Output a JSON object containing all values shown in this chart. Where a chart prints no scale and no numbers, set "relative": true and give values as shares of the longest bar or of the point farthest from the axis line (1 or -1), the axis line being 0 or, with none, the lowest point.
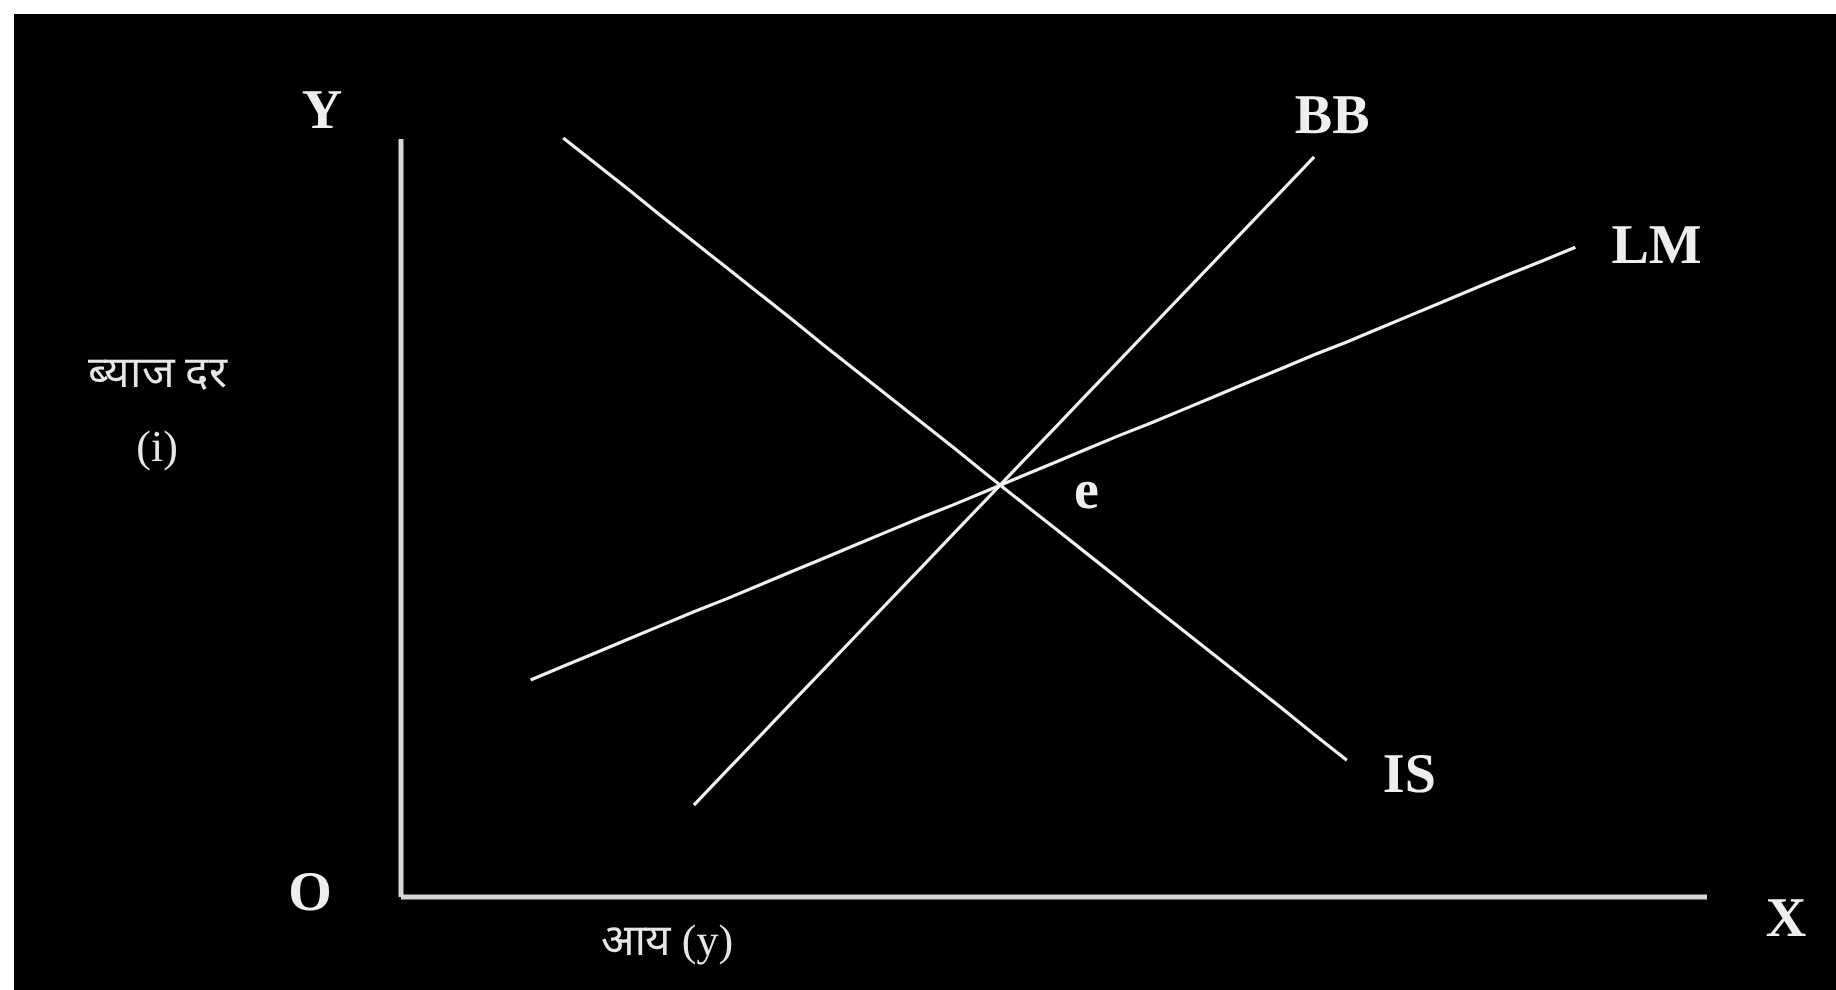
{
  "chart_data": {
    "type": "line",
    "xlabel": "आय (y)",
    "ylabel": "ब्याज दर\n(i)",
    "relative": true,
    "categories": [
      null,
      null,
      null,
      null,
      null,
      null,
      null,
      null,
      null,
      null,
      null,
      null,
      null,
      null,
      null,
      null,
      null,
      null,
      null,
      null,
      null,
      null,
      null,
      null,
      null,
      null,
      null,
      null,
      null,
      null,
      null,
      null,
      null,
      null,
      null,
      null,
      null,
      null,
      null,
      null,
      null
    ],
    "series": [
      {
        "name": "BB",
        "color": "#f0f0f0",
        "values": [
          null,
          null,
          null,
          null,
          null,
          null,
          null,
          null,
          null,
          0.12,
          0.165,
          0.21,
          0.255,
          0.3,
          0.345,
          0.39,
          0.435,
          0.48,
          0.525,
          0.57,
          0.615,
          0.66,
          0.705,
          0.75,
          0.795,
          0.84,
          0.885,
          0.93,
          0.975,
          null,
          null,
          null,
          null,
          null,
          null,
          null,
          null,
          null,
          null,
          null,
          null
        ]
      },
      {
        "name": "LM",
        "color": "#f0f0f0",
        "values": [
          null,
          null,
          null,
          null,
          0.285,
          0.303,
          0.321,
          0.339,
          0.357,
          0.375,
          0.392,
          0.41,
          0.428,
          0.446,
          0.464,
          0.482,
          0.5,
          0.517,
          0.535,
          0.553,
          0.571,
          0.589,
          0.607,
          0.624,
          0.642,
          0.66,
          0.678,
          0.696,
          0.714,
          0.731,
          0.749,
          0.767,
          0.785,
          0.803,
          0.821,
          0.838,
          0.856,
          null,
          null,
          null,
          null
        ]
      },
      {
        "name": "IS",
        "color": "#f0f0f0",
        "values": [
          null,
          null,
          null,
          null,
          null,
          1.0,
          0.966,
          0.932,
          0.897,
          0.863,
          0.829,
          0.795,
          0.761,
          0.726,
          0.692,
          0.658,
          0.624,
          0.59,
          0.555,
          0.521,
          0.487,
          0.453,
          0.419,
          0.384,
          0.35,
          0.316,
          0.282,
          0.248,
          0.213,
          0.179,
          null,
          null,
          null,
          null,
          null,
          null,
          null,
          null,
          null,
          null,
          null
        ]
      }
    ],
    "annotations": [
      "O",
      "Y",
      "X",
      "e"
    ]
  }
}
